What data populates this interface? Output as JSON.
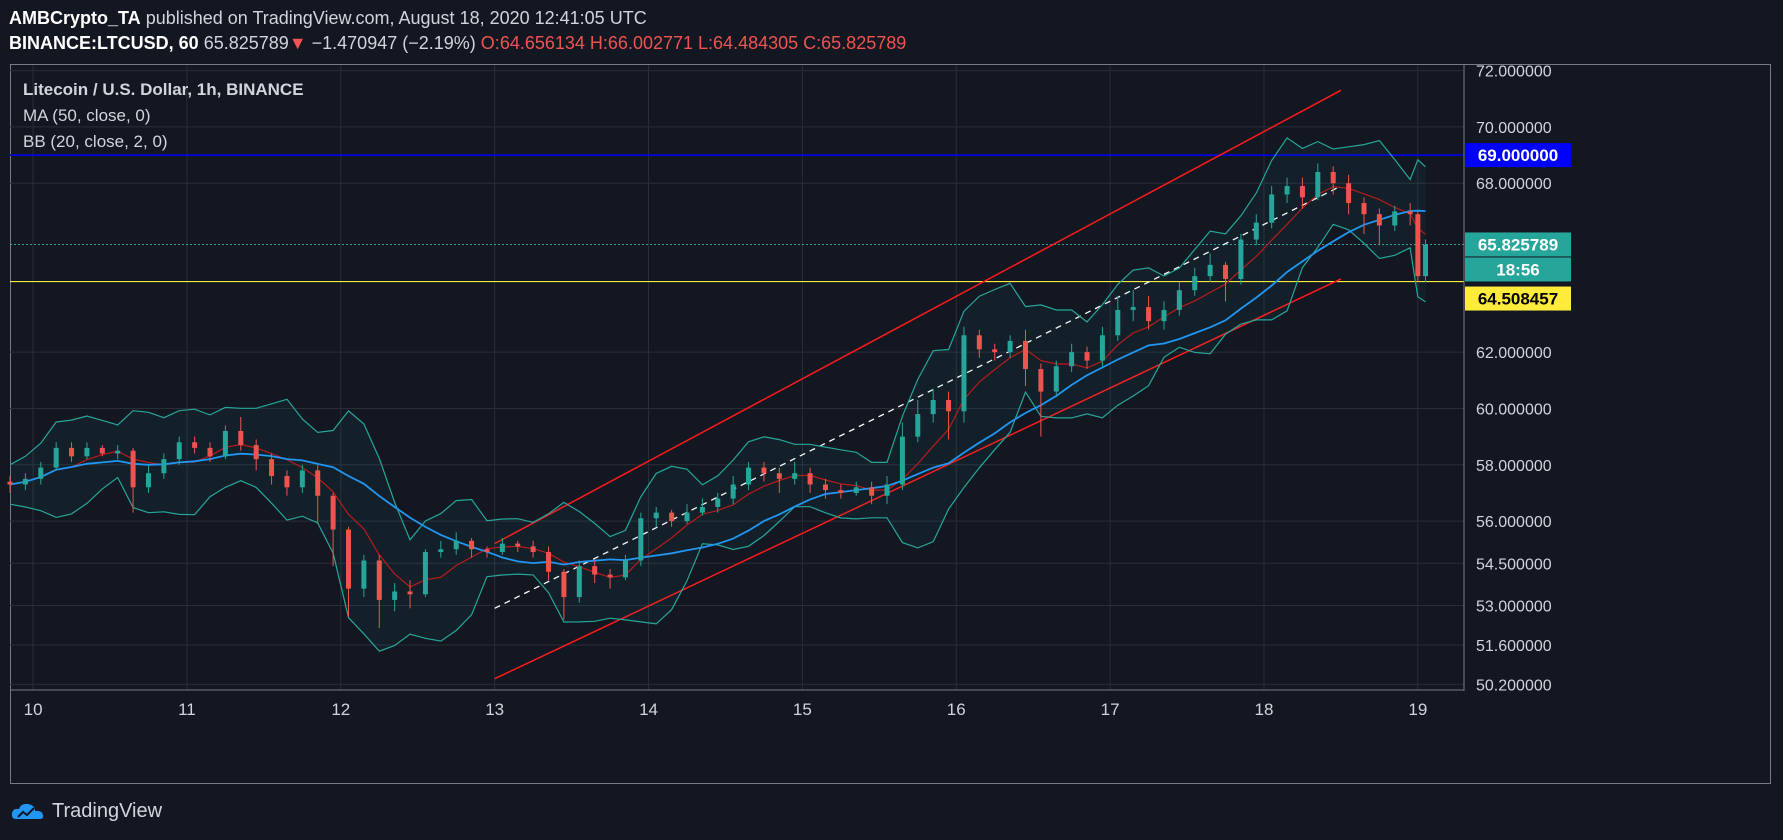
{
  "header": {
    "author": "AMBCrypto_TA",
    "published": "published on TradingView.com, August 18, 2020 12:41:05 UTC",
    "symbol": "BINANCE:LTCUSD, 60",
    "last": "65.825789",
    "change": "−1.470947 (−2.19%)",
    "o_label": "O:",
    "o": "64.656134",
    "h_label": "H:",
    "h": "66.002771",
    "l_label": "L:",
    "l": "64.484305",
    "c_label": "C:",
    "c": "65.825789"
  },
  "legend": {
    "title": "Litecoin / U.S. Dollar, 1h, BINANCE",
    "ma": "MA (50, close, 0)",
    "bb": "BB (20, close, 2, 0)"
  },
  "footer": {
    "brand": "TradingView"
  },
  "colors": {
    "background": "#131722",
    "up": "#26a69a",
    "down": "#ef5350",
    "ma": "#2196f3",
    "bb_band": "#26a69a",
    "bb_basis": "#b71c1c",
    "channel": "#ff1a1a",
    "resistance": "#0000ff",
    "support": "#ffeb3b"
  },
  "chart_data": {
    "type": "candlestick",
    "interval": "1h",
    "x_range": [
      9.85,
      19.3
    ],
    "y_range": [
      50.0,
      72.2
    ],
    "x_ticks": [
      "10",
      "11",
      "12",
      "13",
      "14",
      "15",
      "16",
      "17",
      "18",
      "19"
    ],
    "y_ticks": [
      "72.000000",
      "70.000000",
      "68.000000",
      "62.000000",
      "60.000000",
      "58.000000",
      "56.000000",
      "54.500000",
      "53.000000",
      "51.600000",
      "50.200000"
    ],
    "price_labels": [
      {
        "label": "69.000000",
        "kind": "resistance"
      },
      {
        "label": "65.825789",
        "kind": "last"
      },
      {
        "label": "18:56",
        "kind": "countdown"
      },
      {
        "label": "64.508457",
        "kind": "support"
      }
    ],
    "horizontal_lines": {
      "resistance": 69.0,
      "last": 65.825789,
      "support": 64.508457
    },
    "channel": {
      "upper": [
        [
          13.0,
          55.2
        ],
        [
          18.5,
          71.3
        ]
      ],
      "lower": [
        [
          13.0,
          50.4
        ],
        [
          18.5,
          64.6
        ]
      ],
      "middle": [
        [
          13.0,
          52.9
        ],
        [
          18.5,
          67.9
        ]
      ]
    },
    "candles": [
      [
        9.85,
        57.4,
        57.3,
        57.0,
        57.6
      ],
      [
        9.95,
        57.3,
        57.5,
        57.1,
        57.7
      ],
      [
        10.05,
        57.5,
        57.9,
        57.3,
        58.1
      ],
      [
        10.15,
        57.9,
        58.6,
        57.8,
        58.8
      ],
      [
        10.25,
        58.6,
        58.3,
        58.1,
        58.8
      ],
      [
        10.35,
        58.3,
        58.6,
        58.2,
        58.8
      ],
      [
        10.45,
        58.6,
        58.4,
        58.3,
        58.7
      ],
      [
        10.55,
        58.4,
        58.5,
        58.2,
        58.7
      ],
      [
        10.65,
        58.5,
        57.2,
        56.3,
        58.6
      ],
      [
        10.75,
        57.2,
        57.7,
        57.0,
        58.0
      ],
      [
        10.85,
        57.7,
        58.2,
        57.5,
        58.4
      ],
      [
        10.95,
        58.2,
        58.8,
        58.0,
        59.0
      ],
      [
        11.05,
        58.8,
        58.6,
        58.4,
        59.0
      ],
      [
        11.15,
        58.6,
        58.3,
        58.1,
        58.8
      ],
      [
        11.25,
        58.3,
        59.2,
        58.2,
        59.4
      ],
      [
        11.35,
        59.2,
        58.7,
        58.5,
        59.7
      ],
      [
        11.45,
        58.7,
        58.2,
        57.8,
        58.9
      ],
      [
        11.55,
        58.2,
        57.6,
        57.3,
        58.4
      ],
      [
        11.65,
        57.6,
        57.2,
        56.9,
        57.8
      ],
      [
        11.75,
        57.2,
        57.8,
        57.0,
        58.0
      ],
      [
        11.85,
        57.8,
        56.9,
        55.9,
        58.0
      ],
      [
        11.95,
        56.9,
        55.7,
        54.4,
        57.0
      ],
      [
        12.05,
        55.7,
        53.6,
        52.6,
        55.8
      ],
      [
        12.15,
        53.6,
        54.6,
        53.3,
        54.8
      ],
      [
        12.25,
        54.6,
        53.2,
        52.2,
        54.8
      ],
      [
        12.35,
        53.2,
        53.5,
        52.8,
        53.8
      ],
      [
        12.45,
        53.5,
        53.4,
        52.9,
        53.9
      ],
      [
        12.55,
        53.4,
        54.9,
        53.3,
        55.0
      ],
      [
        12.65,
        54.9,
        55.0,
        54.7,
        55.3
      ],
      [
        12.75,
        55.0,
        55.3,
        54.8,
        55.6
      ],
      [
        12.85,
        55.3,
        55.0,
        54.7,
        55.4
      ],
      [
        12.95,
        55.0,
        54.9,
        54.7,
        55.1
      ],
      [
        13.05,
        54.9,
        55.2,
        54.8,
        55.4
      ],
      [
        13.15,
        55.2,
        55.1,
        54.9,
        55.3
      ],
      [
        13.25,
        55.1,
        54.9,
        54.7,
        55.3
      ],
      [
        13.35,
        54.9,
        54.2,
        53.9,
        55.1
      ],
      [
        13.45,
        54.2,
        53.3,
        52.5,
        54.3
      ],
      [
        13.55,
        53.3,
        54.4,
        53.1,
        54.6
      ],
      [
        13.65,
        54.4,
        54.1,
        53.8,
        54.6
      ],
      [
        13.75,
        54.1,
        54.0,
        53.6,
        54.3
      ],
      [
        13.85,
        54.0,
        54.6,
        53.9,
        54.8
      ],
      [
        13.95,
        54.6,
        56.1,
        54.4,
        56.3
      ],
      [
        14.05,
        56.1,
        56.3,
        55.8,
        56.5
      ],
      [
        14.15,
        56.3,
        56.0,
        55.8,
        56.4
      ],
      [
        14.25,
        56.0,
        56.3,
        55.9,
        56.6
      ],
      [
        14.35,
        56.3,
        56.5,
        56.2,
        56.8
      ],
      [
        14.45,
        56.5,
        56.8,
        56.3,
        57.0
      ],
      [
        14.55,
        56.8,
        57.3,
        56.6,
        57.6
      ],
      [
        14.65,
        57.3,
        57.9,
        57.1,
        58.1
      ],
      [
        14.75,
        57.9,
        57.7,
        57.4,
        58.1
      ],
      [
        14.85,
        57.7,
        57.5,
        57.0,
        57.9
      ],
      [
        14.95,
        57.5,
        57.7,
        57.3,
        58.1
      ],
      [
        15.05,
        57.7,
        57.3,
        57.0,
        57.9
      ],
      [
        15.15,
        57.3,
        57.1,
        56.8,
        57.5
      ],
      [
        15.25,
        57.1,
        57.0,
        56.8,
        57.3
      ],
      [
        15.35,
        57.0,
        57.2,
        56.9,
        57.4
      ],
      [
        15.45,
        57.2,
        56.9,
        56.6,
        57.4
      ],
      [
        15.55,
        56.9,
        57.3,
        56.6,
        57.6
      ],
      [
        15.65,
        57.3,
        59.0,
        57.1,
        59.5
      ],
      [
        15.75,
        59.0,
        59.8,
        58.8,
        60.3
      ],
      [
        15.85,
        59.8,
        60.3,
        59.5,
        60.7
      ],
      [
        15.95,
        60.3,
        59.9,
        58.9,
        60.6
      ],
      [
        16.05,
        59.9,
        62.6,
        59.5,
        62.9
      ],
      [
        16.15,
        62.6,
        62.1,
        61.8,
        62.8
      ],
      [
        16.25,
        62.1,
        62.0,
        61.7,
        62.3
      ],
      [
        16.35,
        62.0,
        62.4,
        61.8,
        62.6
      ],
      [
        16.45,
        62.4,
        61.4,
        60.8,
        62.8
      ],
      [
        16.55,
        61.4,
        60.6,
        59.0,
        61.6
      ],
      [
        16.65,
        60.6,
        61.5,
        60.4,
        61.7
      ],
      [
        16.75,
        61.5,
        62.0,
        61.3,
        62.3
      ],
      [
        16.85,
        62.0,
        61.7,
        61.4,
        62.2
      ],
      [
        16.95,
        61.7,
        62.6,
        61.5,
        62.9
      ],
      [
        17.05,
        62.6,
        63.5,
        62.4,
        64.0
      ],
      [
        17.15,
        63.5,
        63.6,
        63.1,
        64.2
      ],
      [
        17.25,
        63.6,
        63.1,
        62.8,
        64.0
      ],
      [
        17.35,
        63.1,
        63.5,
        62.8,
        63.8
      ],
      [
        17.45,
        63.5,
        64.2,
        63.3,
        64.5
      ],
      [
        17.55,
        64.2,
        64.7,
        64.0,
        65.0
      ],
      [
        17.65,
        64.7,
        65.1,
        64.5,
        65.5
      ],
      [
        17.75,
        65.1,
        64.6,
        63.8,
        65.2
      ],
      [
        17.85,
        64.6,
        66.0,
        64.4,
        66.2
      ],
      [
        17.95,
        66.0,
        66.6,
        65.8,
        66.9
      ],
      [
        18.05,
        66.6,
        67.6,
        66.4,
        67.9
      ],
      [
        18.15,
        67.6,
        67.9,
        67.3,
        68.2
      ],
      [
        18.25,
        67.9,
        67.5,
        67.1,
        68.2
      ],
      [
        18.35,
        67.5,
        68.4,
        67.4,
        68.7
      ],
      [
        18.45,
        68.4,
        68.0,
        67.6,
        68.6
      ],
      [
        18.55,
        68.0,
        67.3,
        66.9,
        68.3
      ],
      [
        18.65,
        67.3,
        66.9,
        66.2,
        67.5
      ],
      [
        18.75,
        66.9,
        66.5,
        65.8,
        67.1
      ],
      [
        18.85,
        66.5,
        67.0,
        66.3,
        67.2
      ],
      [
        18.95,
        67.0,
        66.9,
        66.5,
        67.3
      ],
      [
        19.0,
        66.9,
        64.7,
        64.5,
        67.0
      ],
      [
        19.05,
        64.7,
        65.825789,
        64.484305,
        66.002771
      ]
    ]
  }
}
